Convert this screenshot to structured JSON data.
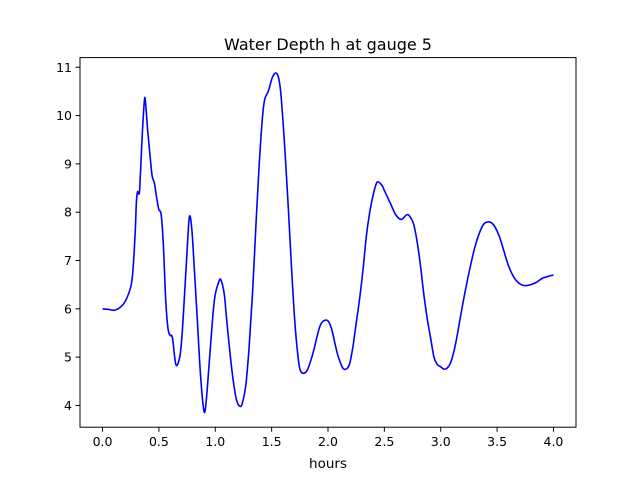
{
  "chart_data": {
    "type": "line",
    "title": "Water Depth h at gauge 5",
    "xlabel": "hours",
    "ylabel": "",
    "xlim": [
      -0.2,
      4.2
    ],
    "ylim": [
      3.55,
      11.2
    ],
    "xticks": [
      0.0,
      0.5,
      1.0,
      1.5,
      2.0,
      2.5,
      3.0,
      3.5,
      4.0
    ],
    "xtick_labels": [
      "0.0",
      "0.5",
      "1.0",
      "1.5",
      "2.0",
      "2.5",
      "3.0",
      "3.5",
      "4.0"
    ],
    "yticks": [
      4,
      5,
      6,
      7,
      8,
      9,
      10,
      11
    ],
    "ytick_labels": [
      "4",
      "5",
      "6",
      "7",
      "8",
      "9",
      "10",
      "11"
    ],
    "grid": false,
    "legend": "none",
    "series": [
      {
        "color": "#0000ff",
        "x": [
          0.0,
          0.05,
          0.1,
          0.15,
          0.2,
          0.25,
          0.27,
          0.29,
          0.3,
          0.31,
          0.32,
          0.33,
          0.35,
          0.37,
          0.38,
          0.4,
          0.42,
          0.44,
          0.46,
          0.48,
          0.5,
          0.52,
          0.54,
          0.56,
          0.58,
          0.6,
          0.62,
          0.65,
          0.68,
          0.7,
          0.72,
          0.75,
          0.77,
          0.79,
          0.81,
          0.84,
          0.87,
          0.9,
          0.92,
          0.95,
          0.98,
          1.0,
          1.03,
          1.05,
          1.08,
          1.1,
          1.13,
          1.16,
          1.19,
          1.22,
          1.24,
          1.27,
          1.3,
          1.33,
          1.36,
          1.39,
          1.42,
          1.44,
          1.47,
          1.5,
          1.52,
          1.54,
          1.56,
          1.58,
          1.6,
          1.62,
          1.65,
          1.68,
          1.71,
          1.74,
          1.76,
          1.79,
          1.82,
          1.85,
          1.88,
          1.9,
          1.93,
          1.96,
          2.0,
          2.03,
          2.06,
          2.08,
          2.1,
          2.13,
          2.16,
          2.19,
          2.22,
          2.25,
          2.28,
          2.31,
          2.34,
          2.37,
          2.4,
          2.43,
          2.45,
          2.48,
          2.5,
          2.53,
          2.56,
          2.6,
          2.65,
          2.7,
          2.73,
          2.76,
          2.79,
          2.82,
          2.85,
          2.88,
          2.91,
          2.94,
          2.97,
          3.0,
          3.03,
          3.06,
          3.09,
          3.12,
          3.15,
          3.18,
          3.22,
          3.26,
          3.3,
          3.34,
          3.38,
          3.42,
          3.45,
          3.48,
          3.52,
          3.56,
          3.6,
          3.65,
          3.7,
          3.75,
          3.8,
          3.85,
          3.9,
          3.95,
          4.0
        ],
        "y": [
          6.0,
          5.99,
          5.97,
          6.02,
          6.15,
          6.45,
          6.8,
          7.6,
          8.2,
          8.42,
          8.38,
          8.5,
          9.5,
          10.28,
          10.3,
          9.7,
          9.2,
          8.75,
          8.6,
          8.3,
          8.05,
          7.95,
          7.3,
          6.2,
          5.6,
          5.45,
          5.4,
          4.85,
          4.95,
          5.3,
          6.0,
          7.2,
          7.9,
          7.7,
          7.0,
          5.8,
          4.6,
          3.88,
          4.1,
          5.0,
          5.9,
          6.3,
          6.55,
          6.6,
          6.3,
          5.8,
          5.1,
          4.5,
          4.1,
          3.98,
          4.05,
          4.4,
          5.2,
          6.3,
          7.7,
          9.0,
          10.0,
          10.35,
          10.5,
          10.75,
          10.85,
          10.88,
          10.8,
          10.5,
          9.9,
          9.2,
          8.0,
          6.7,
          5.6,
          4.9,
          4.7,
          4.67,
          4.75,
          4.95,
          5.2,
          5.4,
          5.65,
          5.75,
          5.75,
          5.6,
          5.3,
          5.1,
          4.95,
          4.78,
          4.75,
          4.85,
          5.2,
          5.7,
          6.2,
          6.8,
          7.5,
          8.0,
          8.35,
          8.6,
          8.62,
          8.55,
          8.45,
          8.3,
          8.15,
          7.95,
          7.85,
          7.95,
          7.9,
          7.75,
          7.4,
          6.9,
          6.3,
          5.8,
          5.4,
          5.0,
          4.85,
          4.8,
          4.75,
          4.78,
          4.9,
          5.15,
          5.5,
          5.9,
          6.4,
          6.85,
          7.25,
          7.55,
          7.75,
          7.8,
          7.78,
          7.7,
          7.5,
          7.2,
          6.9,
          6.65,
          6.52,
          6.48,
          6.5,
          6.55,
          6.63,
          6.67,
          6.7
        ]
      }
    ]
  }
}
